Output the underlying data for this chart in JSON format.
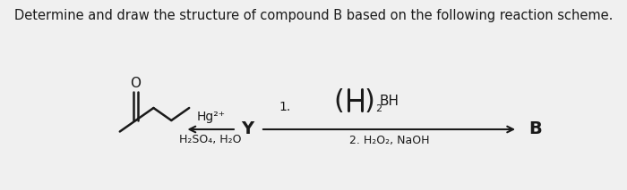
{
  "title": "Determine and draw the structure of compound B based on the following reaction scheme.",
  "title_fontsize": 10.5,
  "bg_color": "#f0f0f0",
  "text_color": "#1a1a1a",
  "arrow1_label_top": "Hg²⁺",
  "arrow1_label_bottom": "H₂SO₄, H₂O",
  "arrow2_label_bottom": "2. H₂O₂, NaOH",
  "Y_label": "Y",
  "B_label": "B"
}
